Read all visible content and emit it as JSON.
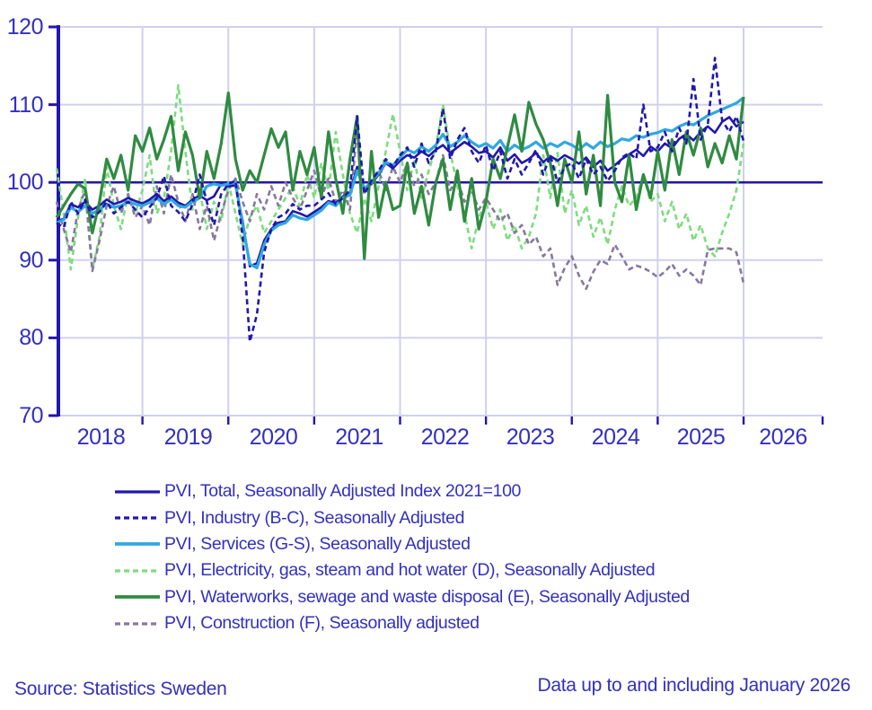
{
  "chart_data": {
    "type": "line",
    "title": "",
    "x_frequency": "monthly",
    "x_start": "2018-01",
    "x_end": "2026-01",
    "ylim": [
      70,
      120
    ],
    "grid": true,
    "reference_line": 100,
    "legend_position": "bottom-left",
    "yticks": [
      "120",
      "110",
      "100",
      "90",
      "80",
      "70"
    ],
    "xticks": [
      "2018",
      "2019",
      "2020",
      "2021",
      "2022",
      "2023",
      "2024",
      "2025",
      "2026"
    ],
    "colors": {
      "axis": "#2414B0",
      "grid": "#D0D0EE",
      "text": "#3330BE"
    },
    "series": [
      {
        "name": "PVI, Total, Seasonally Adjusted Index 2021=100",
        "color": "#2018AC",
        "dashed": false,
        "width": 2.6,
        "values": [
          95.0,
          95.3,
          97.2,
          96.8,
          97.5,
          96.5,
          97.0,
          97.8,
          97.2,
          97.5,
          98.0,
          97.6,
          97.3,
          97.8,
          98.5,
          97.6,
          98.2,
          97.4,
          97.0,
          97.8,
          98.3,
          97.7,
          98.2,
          99.8,
          99.5,
          99.6,
          95.0,
          89.2,
          89.6,
          92.5,
          94.0,
          94.8,
          95.0,
          96.3,
          96.0,
          95.6,
          96.2,
          96.8,
          97.6,
          97.3,
          98.2,
          98.6,
          102.0,
          99.0,
          99.8,
          101.0,
          102.5,
          101.8,
          102.8,
          103.5,
          103.2,
          104.0,
          103.4,
          104.2,
          104.8,
          103.8,
          104.5,
          105.2,
          104.6,
          103.8,
          104.0,
          103.2,
          104.5,
          102.8,
          103.6,
          102.5,
          103.0,
          103.8,
          102.6,
          103.4,
          102.8,
          103.5,
          103.0,
          102.4,
          103.2,
          102.0,
          102.8,
          101.5,
          102.2,
          103.0,
          103.6,
          104.2,
          103.4,
          104.6,
          104.0,
          105.0,
          104.4,
          105.6,
          106.2,
          105.4,
          106.5,
          107.2,
          106.4,
          107.8,
          108.4,
          107.2,
          107.8
        ]
      },
      {
        "name": "PVI, Industry (B-C), Seasonally Adjusted",
        "color": "#2018AC",
        "dashed": true,
        "width": 2.6,
        "values": [
          94.8,
          94.2,
          97.5,
          96.0,
          97.8,
          95.5,
          96.2,
          97.5,
          96.0,
          96.8,
          97.5,
          96.5,
          95.5,
          96.8,
          98.0,
          100.8,
          97.0,
          96.2,
          95.0,
          97.2,
          101.0,
          97.5,
          94.5,
          98.5,
          99.8,
          100.2,
          93.0,
          79.5,
          83.0,
          91.0,
          94.0,
          95.5,
          96.0,
          97.2,
          96.5,
          97.0,
          97.0,
          97.8,
          98.6,
          97.2,
          98.0,
          99.0,
          108.5,
          98.5,
          100.2,
          101.5,
          103.0,
          102.0,
          103.5,
          104.5,
          102.0,
          105.0,
          102.5,
          104.0,
          109.5,
          103.0,
          105.5,
          107.0,
          104.0,
          102.5,
          104.8,
          101.5,
          104.0,
          100.5,
          103.0,
          101.0,
          102.5,
          104.2,
          101.0,
          103.5,
          100.0,
          102.0,
          102.5,
          100.5,
          103.0,
          101.0,
          102.0,
          100.2,
          101.5,
          103.2,
          103.8,
          103.0,
          110.0,
          104.0,
          104.5,
          106.5,
          104.0,
          107.0,
          105.0,
          113.3,
          105.5,
          107.5,
          116.0,
          108.0,
          106.5,
          108.5,
          105.3
        ]
      },
      {
        "name": "PVI, Services (G-S), Seasonally Adjusted",
        "color": "#2FA8E0",
        "dashed": false,
        "width": 3.2,
        "values": [
          94.8,
          95.2,
          96.8,
          96.2,
          97.0,
          96.0,
          96.5,
          97.2,
          96.8,
          97.0,
          97.5,
          97.2,
          97.0,
          97.4,
          98.0,
          97.2,
          97.8,
          97.0,
          96.8,
          97.5,
          98.0,
          99.5,
          99.8,
          99.6,
          99.8,
          100.0,
          94.5,
          89.5,
          89.0,
          92.0,
          93.8,
          94.5,
          94.8,
          95.8,
          95.4,
          95.2,
          95.8,
          96.4,
          97.4,
          97.0,
          98.0,
          98.4,
          101.5,
          99.2,
          100.0,
          101.2,
          102.6,
          102.2,
          103.2,
          104.2,
          103.8,
          104.6,
          104.0,
          104.8,
          106.2,
          104.6,
          105.2,
          106.0,
          105.2,
          104.6,
          105.0,
          104.4,
          105.4,
          104.0,
          104.8,
          104.2,
          104.6,
          105.2,
          104.4,
          105.0,
          104.6,
          105.2,
          104.8,
          104.2,
          105.0,
          104.4,
          105.2,
          104.6,
          105.0,
          105.6,
          105.4,
          106.0,
          105.8,
          106.2,
          106.4,
          106.8,
          106.6,
          107.2,
          107.6,
          107.4,
          108.0,
          108.6,
          109.0,
          109.4,
          109.8,
          110.2,
          110.9
        ]
      },
      {
        "name": "PVI, Electricity, gas, steam and hot water (D), Seasonally Adjusted",
        "color": "#7EDC7E",
        "dashed": true,
        "width": 2.6,
        "values": [
          101.8,
          96.0,
          88.8,
          95.5,
          100.5,
          88.8,
          93.0,
          102.0,
          97.0,
          94.0,
          98.5,
          96.0,
          99.0,
          103.5,
          96.0,
          98.0,
          104.0,
          112.5,
          104.0,
          96.5,
          99.0,
          94.0,
          97.5,
          95.0,
          100.0,
          96.0,
          92.0,
          95.5,
          97.0,
          93.5,
          95.0,
          96.5,
          98.0,
          99.5,
          97.0,
          101.0,
          98.0,
          102.5,
          99.0,
          106.5,
          101.0,
          96.0,
          93.5,
          98.0,
          95.0,
          99.5,
          104.0,
          108.8,
          104.0,
          99.0,
          103.0,
          98.0,
          101.5,
          104.5,
          110.0,
          104.0,
          99.5,
          96.0,
          91.5,
          95.5,
          97.5,
          94.0,
          96.5,
          92.5,
          94.5,
          91.5,
          93.0,
          96.0,
          103.5,
          98.0,
          103.8,
          96.0,
          99.0,
          94.5,
          97.0,
          93.0,
          95.5,
          92.0,
          96.5,
          99.5,
          97.0,
          98.0,
          101.0,
          97.5,
          98.5,
          95.0,
          97.5,
          94.0,
          96.0,
          92.5,
          94.5,
          91.5,
          90.5,
          93.5,
          96.0,
          99.0,
          105.0
        ]
      },
      {
        "name": "PVI, Waterworks, sewage and waste disposal (E), Seasonally Adjusted",
        "color": "#2F8B40",
        "dashed": false,
        "width": 3.2,
        "values": [
          95.5,
          97.0,
          98.5,
          99.8,
          99.2,
          93.5,
          97.5,
          103.0,
          100.5,
          103.5,
          99.0,
          106.0,
          104.0,
          107.0,
          103.0,
          105.5,
          108.5,
          101.5,
          106.5,
          103.5,
          98.0,
          104.0,
          100.5,
          105.0,
          111.5,
          103.0,
          99.0,
          101.5,
          100.0,
          103.5,
          106.9,
          104.5,
          106.5,
          99.0,
          104.0,
          101.0,
          104.5,
          98.0,
          106.5,
          100.5,
          96.0,
          103.0,
          108.5,
          90.2,
          104.0,
          95.5,
          100.0,
          96.5,
          97.0,
          102.5,
          96.0,
          99.5,
          94.5,
          100.0,
          103.0,
          96.5,
          101.5,
          95.0,
          100.5,
          94.0,
          97.5,
          103.0,
          100.5,
          104.5,
          108.7,
          104.0,
          110.3,
          107.5,
          105.5,
          102.5,
          97.0,
          103.0,
          100.0,
          106.5,
          98.5,
          103.5,
          97.0,
          111.2,
          100.0,
          97.5,
          103.5,
          96.5,
          101.0,
          98.0,
          104.0,
          99.0,
          105.5,
          101.0,
          106.5,
          103.5,
          107.0,
          102.0,
          105.0,
          102.5,
          106.0,
          103.0,
          111.0
        ]
      },
      {
        "name": "PVI, Construction (F), Seasonally adjusted",
        "color": "#86789F",
        "dashed": true,
        "width": 2.6,
        "values": [
          97.5,
          94.0,
          91.0,
          96.5,
          99.0,
          88.6,
          92.5,
          97.0,
          99.5,
          96.0,
          98.5,
          95.5,
          97.0,
          94.5,
          99.5,
          96.0,
          101.0,
          97.5,
          95.0,
          98.5,
          94.0,
          97.0,
          92.5,
          96.0,
          99.0,
          100.5,
          97.5,
          95.0,
          98.5,
          96.5,
          99.5,
          97.0,
          100.0,
          98.0,
          96.5,
          99.0,
          101.5,
          98.0,
          100.5,
          97.5,
          99.0,
          96.5,
          107.0,
          98.5,
          100.0,
          101.5,
          99.0,
          102.0,
          100.0,
          102.5,
          99.5,
          101.0,
          98.5,
          100.0,
          103.5,
          99.0,
          100.5,
          97.5,
          99.0,
          96.5,
          98.0,
          96.5,
          95.0,
          96.0,
          93.5,
          94.5,
          92.0,
          93.0,
          90.5,
          91.5,
          86.8,
          89.0,
          90.5,
          88.0,
          86.3,
          88.5,
          90.0,
          89.5,
          92.0,
          90.5,
          88.8,
          89.3,
          89.0,
          88.5,
          87.8,
          88.5,
          89.5,
          88.0,
          88.8,
          88.0,
          86.8,
          91.3,
          91.5,
          91.5,
          91.5,
          91.0,
          87.0
        ]
      }
    ]
  },
  "legend": {
    "items": [
      {
        "label": "PVI, Total, Seasonally Adjusted Index 2021=100"
      },
      {
        "label": "PVI, Industry (B-C), Seasonally Adjusted"
      },
      {
        "label": "PVI, Services (G-S), Seasonally Adjusted"
      },
      {
        "label": "PVI, Electricity, gas, steam and hot water (D), Seasonally Adjusted"
      },
      {
        "label": "PVI, Waterworks, sewage and waste disposal (E), Seasonally Adjusted"
      },
      {
        "label": "PVI, Construction (F), Seasonally adjusted"
      }
    ]
  },
  "footer": {
    "source": "Source: Statistics Sweden",
    "note": "Data up to and including January 2026"
  }
}
